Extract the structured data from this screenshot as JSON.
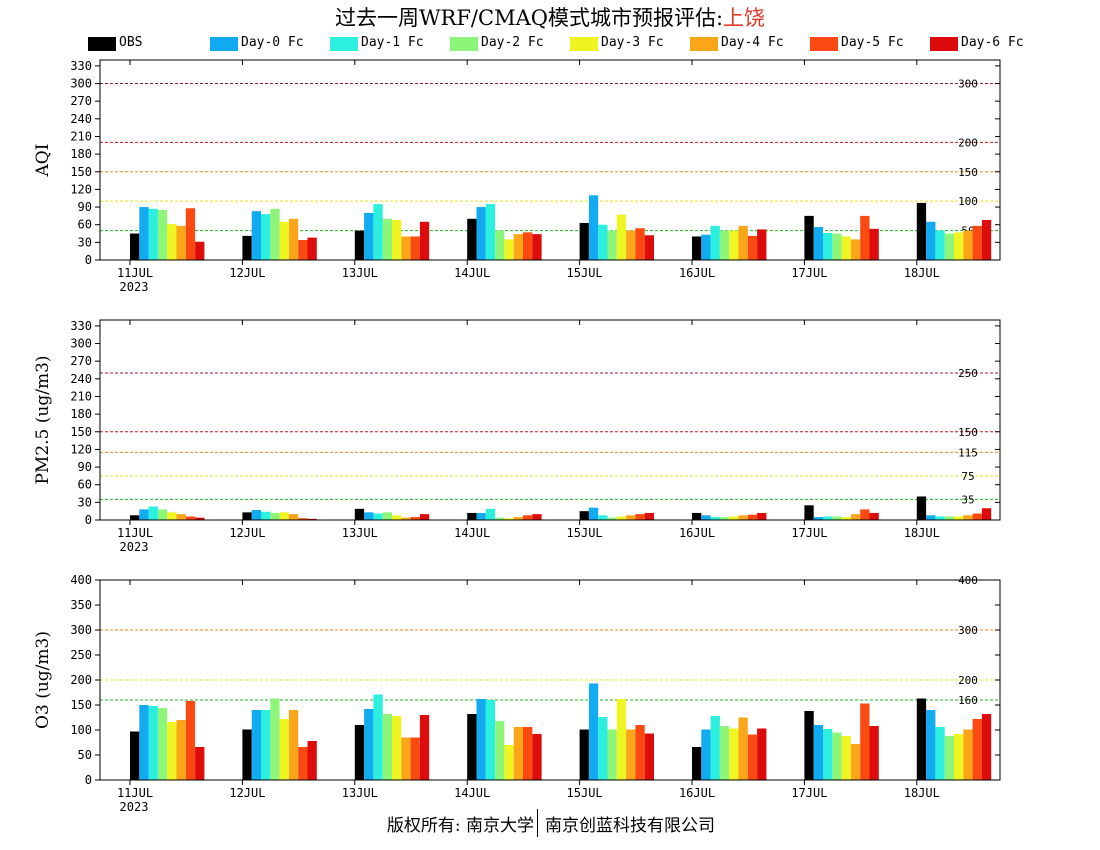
{
  "title": {
    "prefix": "过去一周WRF/CMAQ模式城市预报评估:",
    "city": "上饶"
  },
  "legend": [
    {
      "label": "OBS",
      "color": "#000000"
    },
    {
      "label": "Day-0 Fc",
      "color": "#12aaf0"
    },
    {
      "label": "Day-1 Fc",
      "color": "#2bf0e0"
    },
    {
      "label": "Day-2 Fc",
      "color": "#8cf57a"
    },
    {
      "label": "Day-3 Fc",
      "color": "#eef522"
    },
    {
      "label": "Day-4 Fc",
      "color": "#fba61a"
    },
    {
      "label": "Day-5 Fc",
      "color": "#fa4a12"
    },
    {
      "label": "Day-6 Fc",
      "color": "#dc0c0c"
    }
  ],
  "footer": {
    "left": "版权所有: 南京大学",
    "right": "南京创蓝科技有限公司"
  },
  "chart_data": [
    {
      "type": "bar",
      "ylabel": "AQI",
      "ylim": [
        0,
        340
      ],
      "yticks": [
        0,
        30,
        60,
        90,
        120,
        150,
        180,
        210,
        240,
        270,
        300,
        330
      ],
      "categories": [
        "11JUL",
        "12JUL",
        "13JUL",
        "14JUL",
        "15JUL",
        "16JUL",
        "17JUL",
        "18JUL"
      ],
      "first_tick_sublabel": "2023",
      "thresholds": [
        {
          "value": 300,
          "label": "300",
          "color": "#9a1a38"
        },
        {
          "value": 200,
          "label": "200",
          "color": "#c8181c"
        },
        {
          "value": 150,
          "label": "150",
          "color": "#f08a1a"
        },
        {
          "value": 100,
          "label": "100",
          "color": "#e4e41a"
        },
        {
          "value": 50,
          "label": "50",
          "color": "#22b522"
        }
      ],
      "series": [
        {
          "name": "OBS",
          "values": [
            45,
            41,
            50,
            70,
            63,
            40,
            75,
            97
          ]
        },
        {
          "name": "Day-0 Fc",
          "values": [
            90,
            83,
            80,
            90,
            110,
            43,
            56,
            65
          ]
        },
        {
          "name": "Day-1 Fc",
          "values": [
            87,
            78,
            95,
            95,
            60,
            58,
            46,
            50
          ]
        },
        {
          "name": "Day-2 Fc",
          "values": [
            85,
            87,
            70,
            50,
            50,
            50,
            45,
            45
          ]
        },
        {
          "name": "Day-3 Fc",
          "values": [
            61,
            65,
            68,
            35,
            77,
            50,
            40,
            47
          ]
        },
        {
          "name": "Day-4 Fc",
          "values": [
            58,
            70,
            40,
            44,
            50,
            58,
            35,
            50
          ]
        },
        {
          "name": "Day-5 Fc",
          "values": [
            88,
            34,
            40,
            47,
            54,
            41,
            75,
            58
          ]
        },
        {
          "name": "Day-6 Fc",
          "values": [
            31,
            38,
            65,
            44,
            42,
            52,
            53,
            68
          ]
        }
      ]
    },
    {
      "type": "bar",
      "ylabel": "PM2.5 (ug/m3)",
      "ylim": [
        0,
        340
      ],
      "yticks": [
        0,
        30,
        60,
        90,
        120,
        150,
        180,
        210,
        240,
        270,
        300,
        330
      ],
      "categories": [
        "11JUL",
        "12JUL",
        "13JUL",
        "14JUL",
        "15JUL",
        "16JUL",
        "17JUL",
        "18JUL"
      ],
      "first_tick_sublabel": "2023",
      "thresholds": [
        {
          "value": 250,
          "label": "250",
          "color": "#9a1a38"
        },
        {
          "value": 150,
          "label": "150",
          "color": "#c8181c"
        },
        {
          "value": 115,
          "label": "115",
          "color": "#f08a1a"
        },
        {
          "value": 75,
          "label": "75",
          "color": "#e4e41a"
        },
        {
          "value": 35,
          "label": "35",
          "color": "#22b522"
        }
      ],
      "series": [
        {
          "name": "OBS",
          "values": [
            8,
            13,
            19,
            12,
            15,
            12,
            25,
            40
          ]
        },
        {
          "name": "Day-0 Fc",
          "values": [
            18,
            17,
            13,
            12,
            21,
            8,
            5,
            8
          ]
        },
        {
          "name": "Day-1 Fc",
          "values": [
            23,
            14,
            11,
            19,
            8,
            5,
            6,
            6
          ]
        },
        {
          "name": "Day-2 Fc",
          "values": [
            18,
            12,
            13,
            4,
            4,
            5,
            6,
            6
          ]
        },
        {
          "name": "Day-3 Fc",
          "values": [
            13,
            13,
            8,
            3,
            6,
            6,
            5,
            6
          ]
        },
        {
          "name": "Day-4 Fc",
          "values": [
            10,
            10,
            4,
            5,
            8,
            8,
            10,
            8
          ]
        },
        {
          "name": "Day-5 Fc",
          "values": [
            6,
            3,
            5,
            8,
            10,
            9,
            18,
            11
          ]
        },
        {
          "name": "Day-6 Fc",
          "values": [
            4,
            2,
            10,
            10,
            12,
            12,
            12,
            20
          ]
        }
      ]
    },
    {
      "type": "bar",
      "ylabel": "O3 (ug/m3)",
      "ylim": [
        0,
        400
      ],
      "yticks": [
        0,
        50,
        100,
        150,
        200,
        250,
        300,
        350,
        400
      ],
      "categories": [
        "11JUL",
        "12JUL",
        "13JUL",
        "14JUL",
        "15JUL",
        "16JUL",
        "17JUL",
        "18JUL"
      ],
      "first_tick_sublabel": "2023",
      "thresholds": [
        {
          "value": 400,
          "label": "400",
          "color": "#9a1a38"
        },
        {
          "value": 300,
          "label": "300",
          "color": "#f08a1a"
        },
        {
          "value": 200,
          "label": "200",
          "color": "#e4e41a"
        },
        {
          "value": 160,
          "label": "160",
          "color": "#22b522"
        }
      ],
      "series": [
        {
          "name": "OBS",
          "values": [
            97,
            101,
            110,
            132,
            101,
            66,
            138,
            163
          ]
        },
        {
          "name": "Day-0 Fc",
          "values": [
            150,
            140,
            142,
            162,
            193,
            101,
            110,
            140
          ]
        },
        {
          "name": "Day-1 Fc",
          "values": [
            148,
            140,
            171,
            160,
            126,
            128,
            102,
            106
          ]
        },
        {
          "name": "Day-2 Fc",
          "values": [
            144,
            163,
            132,
            118,
            101,
            108,
            95,
            88
          ]
        },
        {
          "name": "Day-3 Fc",
          "values": [
            116,
            122,
            128,
            70,
            162,
            103,
            88,
            92
          ]
        },
        {
          "name": "Day-4 Fc",
          "values": [
            120,
            140,
            85,
            106,
            101,
            125,
            72,
            101
          ]
        },
        {
          "name": "Day-5 Fc",
          "values": [
            158,
            66,
            85,
            106,
            110,
            91,
            153,
            122
          ]
        },
        {
          "name": "Day-6 Fc",
          "values": [
            66,
            78,
            130,
            92,
            93,
            103,
            108,
            132
          ]
        }
      ]
    }
  ]
}
